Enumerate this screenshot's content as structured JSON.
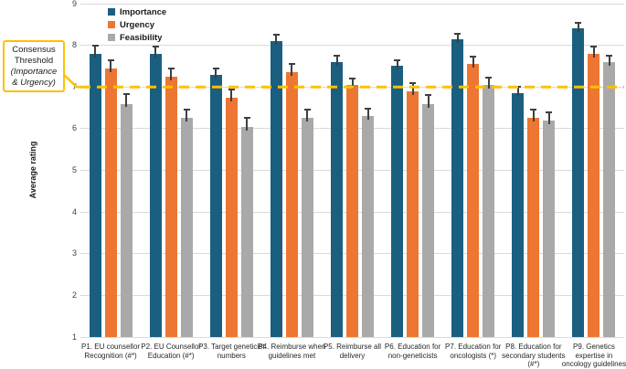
{
  "figure": {
    "background_color": "#FFFFFF"
  },
  "chart_data": {
    "type": "bar",
    "title": "",
    "xlabel": "",
    "ylabel": "Average rating",
    "ylim": [
      1,
      9
    ],
    "yticks": [
      1,
      2,
      3,
      4,
      5,
      6,
      7,
      8,
      9
    ],
    "grid": true,
    "gridline_color": "#DADADA",
    "error_bar_color": "#3F3F3F",
    "legend_position": "top-left",
    "categories": [
      [
        "P1. EU counsellor",
        "Recognition (#*)"
      ],
      [
        "P2. EU Counsellor",
        "Education (#*)"
      ],
      [
        "P3. Target geneticist",
        "numbers"
      ],
      [
        "P4. Reimburse when",
        "guidelines met"
      ],
      [
        "P5. Reimburse all",
        "delivery"
      ],
      [
        "P6. Education for",
        "non-geneticists"
      ],
      [
        "P7. Education for",
        "oncologists (*)"
      ],
      [
        "P8. Education for",
        "secondary students",
        "(#*)"
      ],
      [
        "P9. Genetics",
        "expertise in",
        "oncology guidelines"
      ]
    ],
    "series": [
      {
        "name": "Importance",
        "color": "#1A5F80",
        "values": [
          7.8,
          7.8,
          7.3,
          8.1,
          7.6,
          7.5,
          8.15,
          6.85,
          8.4
        ],
        "errors": [
          0.2,
          0.18,
          0.15,
          0.15,
          0.15,
          0.15,
          0.12,
          0.15,
          0.15
        ]
      },
      {
        "name": "Urgency",
        "color": "#EC7632",
        "values": [
          7.45,
          7.25,
          6.75,
          7.35,
          7.05,
          6.9,
          7.55,
          6.25,
          7.8
        ],
        "errors": [
          0.2,
          0.2,
          0.2,
          0.2,
          0.15,
          0.2,
          0.18,
          0.2,
          0.18
        ]
      },
      {
        "name": "Feasibility",
        "color": "#A9A9A9",
        "values": [
          6.6,
          6.25,
          6.05,
          6.25,
          6.3,
          6.6,
          7.05,
          6.2,
          7.6
        ],
        "errors": [
          0.22,
          0.2,
          0.22,
          0.2,
          0.18,
          0.2,
          0.18,
          0.2,
          0.15
        ]
      }
    ],
    "threshold": {
      "value": 7,
      "applies_to": "Importance & Urgency",
      "line_color": "#FFC000",
      "line_style": "dashed",
      "annotation_lines": [
        "Consensus",
        "Threshold",
        "(Importance",
        "& Urgency)"
      ]
    }
  }
}
